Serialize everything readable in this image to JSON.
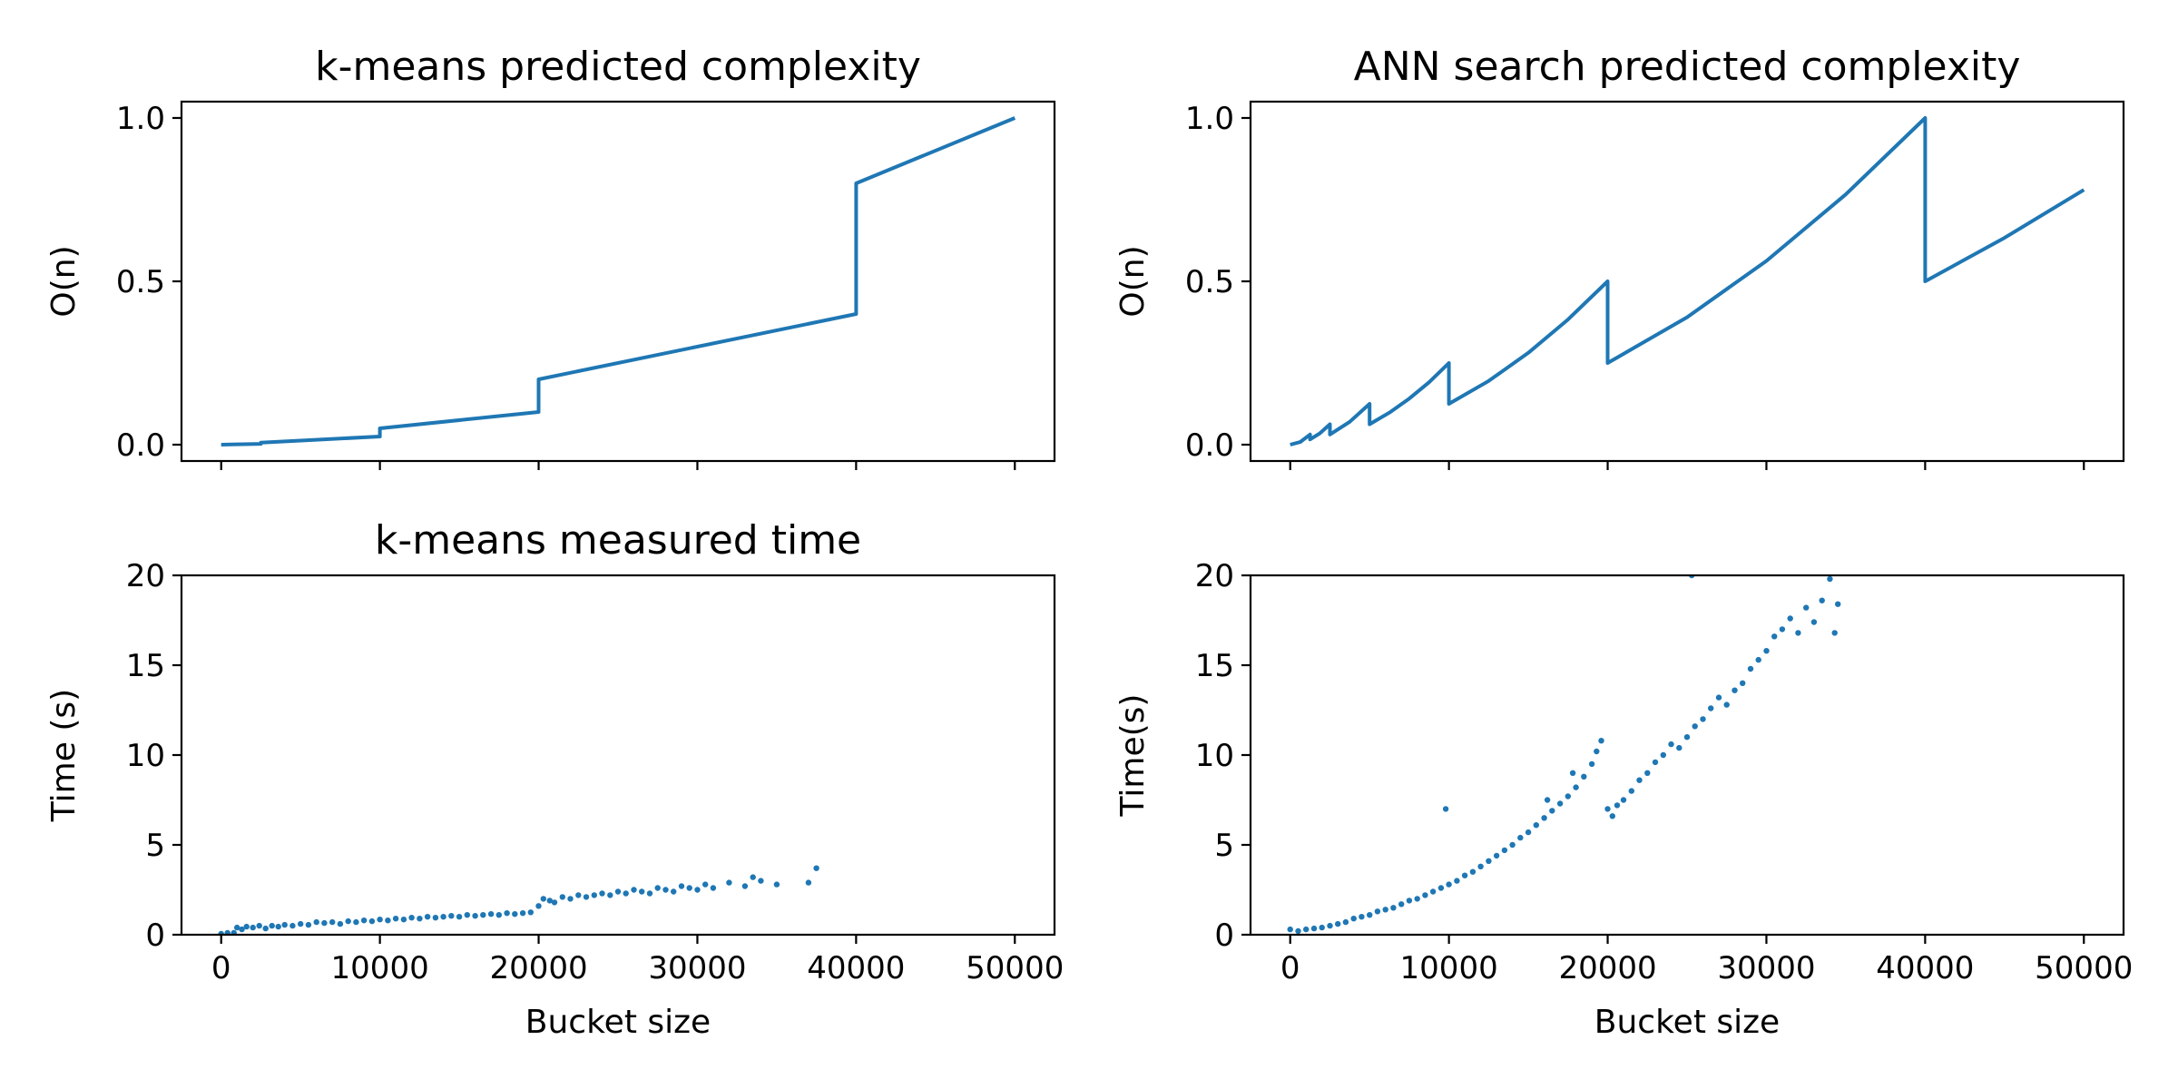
{
  "figure": {
    "series_color": "#1f77b4"
  },
  "chart_data": [
    {
      "id": "kmeans_predicted",
      "type": "line",
      "title": "k-means predicted complexity",
      "xlabel": "",
      "ylabel": "O(n)",
      "xlim": [
        -2500,
        52500
      ],
      "ylim": [
        -0.05,
        1.05
      ],
      "xticks": [
        0,
        10000,
        20000,
        30000,
        40000,
        50000
      ],
      "xtick_labels": [
        "",
        "",
        "",
        "",
        "",
        ""
      ],
      "yticks": [
        0.0,
        0.5,
        1.0
      ],
      "ytick_labels": [
        "0.0",
        "0.5",
        "1.0"
      ],
      "grid": false,
      "series": [
        {
          "x": [
            0,
            2500,
            2500,
            5000,
            5000,
            10000,
            10000,
            20000,
            20000,
            40000,
            40000,
            50000
          ],
          "y": [
            0.0,
            0.0025,
            0.0065,
            0.0125,
            0.0125,
            0.025,
            0.05,
            0.1,
            0.2,
            0.4,
            0.8,
            1.0
          ]
        }
      ]
    },
    {
      "id": "ann_predicted",
      "type": "line",
      "title": "ANN search predicted complexity",
      "xlabel": "",
      "ylabel": "O(n)",
      "xlim": [
        -2500,
        52500
      ],
      "ylim": [
        -0.05,
        1.05
      ],
      "xticks": [
        0,
        10000,
        20000,
        30000,
        40000,
        50000
      ],
      "xtick_labels": [
        "",
        "",
        "",
        "",
        "",
        ""
      ],
      "yticks": [
        0.0,
        0.5,
        1.0
      ],
      "ytick_labels": [
        "0.0",
        "0.5",
        "1.0"
      ],
      "grid": false,
      "series": [
        {
          "x": [
            0,
            625,
            1250,
            1250,
            1875,
            2500,
            2500,
            3750,
            5000,
            5000,
            6250,
            7500,
            8750,
            10000,
            10000,
            12500,
            15000,
            17500,
            20000,
            20000,
            25000,
            30000,
            35000,
            40000,
            40000,
            45000,
            50000
          ],
          "y": [
            0.0,
            0.008,
            0.031,
            0.016,
            0.035,
            0.0625,
            0.031,
            0.07,
            0.125,
            0.0625,
            0.098,
            0.141,
            0.191,
            0.25,
            0.125,
            0.195,
            0.281,
            0.383,
            0.5,
            0.25,
            0.39,
            0.5625,
            0.766,
            1.0,
            0.5,
            0.633,
            0.78
          ]
        }
      ]
    },
    {
      "id": "kmeans_measured",
      "type": "scatter",
      "title": "k-means measured time",
      "xlabel": "Bucket size",
      "ylabel": "Time (s)",
      "xlim": [
        -2500,
        52500
      ],
      "ylim": [
        0,
        20
      ],
      "xticks": [
        0,
        10000,
        20000,
        30000,
        40000,
        50000
      ],
      "xtick_labels": [
        "0",
        "10000",
        "20000",
        "30000",
        "40000",
        "50000"
      ],
      "yticks": [
        0,
        5,
        10,
        15,
        20
      ],
      "ytick_labels": [
        "0",
        "5",
        "10",
        "15",
        "20"
      ],
      "grid": false,
      "series": [
        {
          "x": [
            0,
            400,
            800,
            1000,
            1300,
            1600,
            2000,
            2400,
            2800,
            3200,
            3600,
            4000,
            4500,
            5000,
            5500,
            6000,
            6500,
            7000,
            7500,
            8000,
            8500,
            9000,
            9500,
            10000,
            10500,
            11000,
            11500,
            12000,
            12500,
            13000,
            13500,
            14000,
            14500,
            15000,
            15500,
            16000,
            16500,
            17000,
            17500,
            18000,
            18500,
            19000,
            19500,
            20000,
            20300,
            20700,
            21000,
            21500,
            22000,
            22500,
            23000,
            23500,
            24000,
            24500,
            25000,
            25500,
            26000,
            26500,
            27000,
            27500,
            28000,
            28500,
            29000,
            29500,
            30000,
            30500,
            31000,
            32000,
            33000,
            33500,
            34000,
            35000,
            37000,
            37500
          ],
          "y": [
            0.05,
            0.1,
            0.1,
            0.4,
            0.3,
            0.45,
            0.4,
            0.5,
            0.35,
            0.5,
            0.45,
            0.55,
            0.5,
            0.6,
            0.55,
            0.7,
            0.65,
            0.7,
            0.6,
            0.75,
            0.7,
            0.8,
            0.75,
            0.85,
            0.8,
            0.9,
            0.85,
            0.95,
            0.9,
            1.0,
            0.95,
            1.0,
            1.05,
            1.0,
            1.1,
            1.05,
            1.1,
            1.15,
            1.1,
            1.2,
            1.15,
            1.2,
            1.25,
            1.6,
            2.0,
            1.9,
            1.8,
            2.1,
            2.0,
            2.2,
            2.1,
            2.2,
            2.3,
            2.2,
            2.4,
            2.3,
            2.5,
            2.4,
            2.3,
            2.6,
            2.5,
            2.4,
            2.7,
            2.6,
            2.5,
            2.8,
            2.6,
            2.9,
            2.7,
            3.2,
            3.0,
            2.8,
            2.9,
            3.7
          ]
        }
      ]
    },
    {
      "id": "ann_measured",
      "type": "scatter",
      "title": "",
      "xlabel": "Bucket size",
      "ylabel": "Time(s)",
      "xlim": [
        -2500,
        52500
      ],
      "ylim": [
        0,
        20
      ],
      "xticks": [
        0,
        10000,
        20000,
        30000,
        40000,
        50000
      ],
      "xtick_labels": [
        "0",
        "10000",
        "20000",
        "30000",
        "40000",
        "50000"
      ],
      "yticks": [
        0,
        5,
        10,
        15,
        20
      ],
      "ytick_labels": [
        "0",
        "5",
        "10",
        "15",
        "20"
      ],
      "grid": false,
      "series": [
        {
          "x": [
            0,
            500,
            1000,
            1500,
            2000,
            2500,
            3000,
            3500,
            4000,
            4500,
            5000,
            5500,
            6000,
            6500,
            7000,
            7500,
            8000,
            8500,
            9000,
            9500,
            10000,
            10500,
            11000,
            11500,
            12000,
            12500,
            13000,
            13500,
            14000,
            14500,
            15000,
            15500,
            16000,
            16500,
            17000,
            17500,
            18000,
            18500,
            19000,
            19300,
            19600,
            20000,
            20300,
            20600,
            21000,
            21500,
            22000,
            22500,
            23000,
            23500,
            24000,
            24500,
            25000,
            25500,
            26000,
            26500,
            27000,
            27500,
            28000,
            28500,
            29000,
            29500,
            30000,
            30500,
            31000,
            31500,
            32000,
            32500,
            33000,
            33500,
            34000,
            34300,
            34500,
            9800,
            16200,
            17800,
            25300
          ],
          "y": [
            0.3,
            0.2,
            0.3,
            0.35,
            0.4,
            0.5,
            0.6,
            0.7,
            0.9,
            1.0,
            1.1,
            1.3,
            1.4,
            1.5,
            1.7,
            1.9,
            2.0,
            2.2,
            2.4,
            2.6,
            2.8,
            3.0,
            3.3,
            3.5,
            3.8,
            4.1,
            4.4,
            4.7,
            5.0,
            5.4,
            5.7,
            6.1,
            6.5,
            6.9,
            7.3,
            7.7,
            8.2,
            8.8,
            9.5,
            10.2,
            10.8,
            7.0,
            6.6,
            7.2,
            7.5,
            8.0,
            8.6,
            9.0,
            9.6,
            10.0,
            10.6,
            10.4,
            11.0,
            11.6,
            12.0,
            12.6,
            13.2,
            12.8,
            13.6,
            14.0,
            14.8,
            15.3,
            15.8,
            16.6,
            17.0,
            17.6,
            16.8,
            18.2,
            17.4,
            18.6,
            19.8,
            16.8,
            18.4,
            7.0,
            7.5,
            9.0,
            20.0
          ]
        }
      ]
    }
  ]
}
